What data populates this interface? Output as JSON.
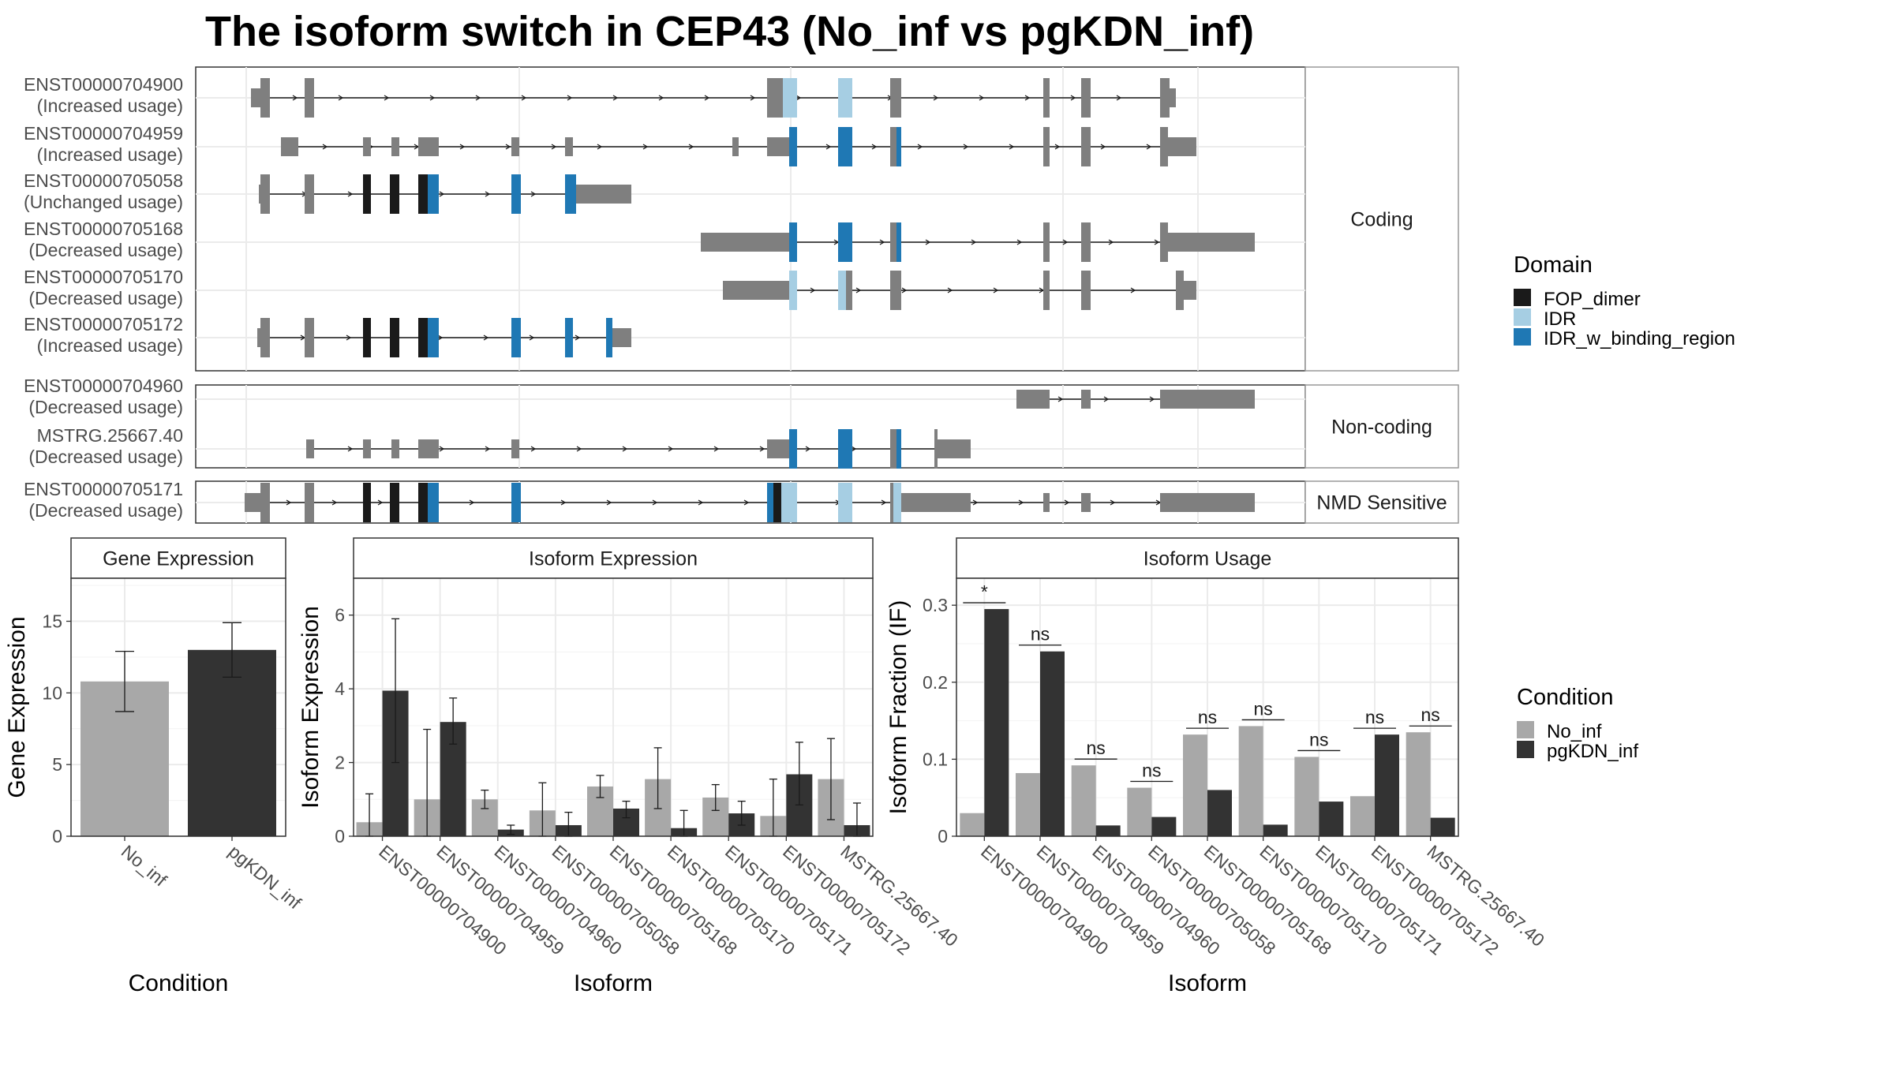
{
  "title": "The isoform switch in CEP43 (No_inf vs pgKDN_inf)",
  "colors": {
    "exon": "#7f7f7f",
    "FOP_dimer": "#1a1a1a",
    "IDR": "#a6cee3",
    "IDR_w_binding_region": "#1f78b4",
    "No_inf": "#a8a8a8",
    "pgKDN_inf": "#333333"
  },
  "structure": {
    "groups": [
      {
        "label": "Coding",
        "transcripts": [
          {
            "id": "ENST00000704900",
            "usage": "(Increased usage)"
          },
          {
            "id": "ENST00000704959",
            "usage": "(Increased usage)"
          },
          {
            "id": "ENST00000705058",
            "usage": "(Unchanged usage)"
          },
          {
            "id": "ENST00000705168",
            "usage": "(Decreased usage)"
          },
          {
            "id": "ENST00000705170",
            "usage": "(Decreased usage)"
          },
          {
            "id": "ENST00000705172",
            "usage": "(Increased usage)"
          }
        ]
      },
      {
        "label": "Non-coding",
        "transcripts": [
          {
            "id": "ENST00000704960",
            "usage": "(Decreased usage)"
          },
          {
            "id": "MSTRG.25667.40",
            "usage": "(Decreased usage)"
          }
        ]
      },
      {
        "label": "NMD Sensitive",
        "transcripts": [
          {
            "id": "ENST00000705171",
            "usage": "(Decreased usage)"
          }
        ]
      }
    ]
  },
  "legends": {
    "domain": {
      "title": "Domain",
      "items": [
        "FOP_dimer",
        "IDR",
        "IDR_w_binding_region"
      ]
    },
    "condition": {
      "title": "Condition",
      "items": [
        "No_inf",
        "pgKDN_inf"
      ]
    }
  },
  "chart_data": [
    {
      "type": "bar",
      "title": "Gene Expression",
      "xlabel": "Condition",
      "ylabel": "Gene Expression",
      "categories": [
        "No_inf",
        "pgKDN_inf"
      ],
      "values": [
        10.8,
        13.0
      ],
      "error_low": [
        8.7,
        11.1
      ],
      "error_high": [
        12.9,
        14.9
      ],
      "ylim": [
        0,
        18
      ],
      "yticks": [
        0,
        5,
        10,
        15
      ]
    },
    {
      "type": "bar",
      "title": "Isoform Expression",
      "xlabel": "Isoform",
      "ylabel": "Isoform Expression",
      "categories": [
        "ENST00000704900",
        "ENST00000704959",
        "ENST00000704960",
        "ENST00000705058",
        "ENST00000705168",
        "ENST00000705170",
        "ENST00000705171",
        "ENST00000705172",
        "MSTRG.25667.40"
      ],
      "series": [
        {
          "name": "No_inf",
          "values": [
            0.38,
            1.0,
            1.0,
            0.7,
            1.35,
            1.55,
            1.05,
            0.55,
            1.55
          ],
          "error_low": [
            0.0,
            0.0,
            0.75,
            0.0,
            1.05,
            0.75,
            0.7,
            0.0,
            0.45
          ],
          "error_high": [
            1.15,
            2.9,
            1.25,
            1.45,
            1.65,
            2.4,
            1.4,
            1.55,
            2.65
          ]
        },
        {
          "name": "pgKDN_inf",
          "values": [
            3.95,
            3.1,
            0.18,
            0.3,
            0.75,
            0.22,
            0.62,
            1.68,
            0.3
          ],
          "error_low": [
            2.0,
            2.5,
            0.05,
            0.0,
            0.5,
            0.0,
            0.3,
            0.85,
            0.0
          ],
          "error_high": [
            5.9,
            3.75,
            0.3,
            0.65,
            0.95,
            0.7,
            0.95,
            2.55,
            0.9
          ]
        }
      ],
      "ylim": [
        0,
        7.0
      ],
      "yticks": [
        0,
        2,
        4,
        6
      ]
    },
    {
      "type": "bar",
      "title": "Isoform Usage",
      "xlabel": "Isoform",
      "ylabel": "Isoform Fraction (IF)",
      "categories": [
        "ENST00000704900",
        "ENST00000704959",
        "ENST00000704960",
        "ENST00000705058",
        "ENST00000705168",
        "ENST00000705170",
        "ENST00000705171",
        "ENST00000705172",
        "MSTRG.25667.40"
      ],
      "series": [
        {
          "name": "No_inf",
          "values": [
            0.03,
            0.082,
            0.092,
            0.063,
            0.132,
            0.143,
            0.103,
            0.052,
            0.135
          ]
        },
        {
          "name": "pgKDN_inf",
          "values": [
            0.295,
            0.24,
            0.014,
            0.025,
            0.06,
            0.015,
            0.045,
            0.132,
            0.024
          ]
        }
      ],
      "significance": [
        "*",
        "ns",
        "ns",
        "ns",
        "ns",
        "ns",
        "ns",
        "ns",
        "ns"
      ],
      "ylim": [
        0,
        0.335
      ],
      "yticks": [
        0.0,
        0.1,
        0.2,
        0.3
      ]
    }
  ]
}
